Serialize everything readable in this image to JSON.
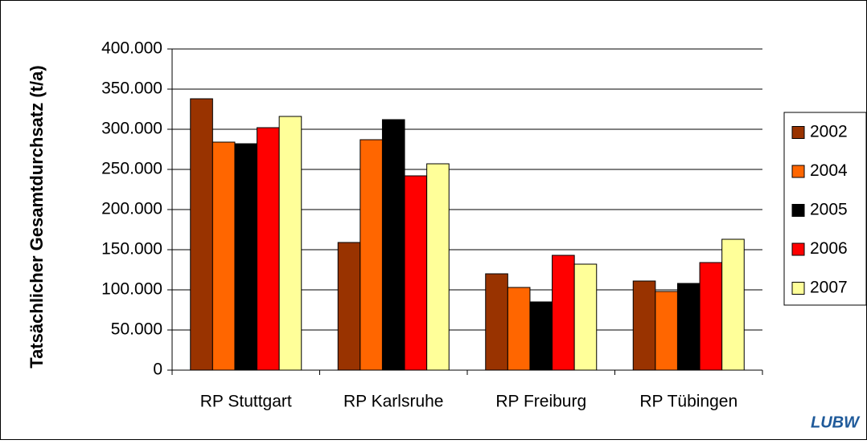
{
  "chart_data": {
    "type": "bar",
    "y_label": "Tatsächlicher Gesamtdurchsatz (t/a)",
    "categories": [
      "RP Stuttgart",
      "RP Karlsruhe",
      "RP Freiburg",
      "RP Tübingen"
    ],
    "series": [
      {
        "name": "2002",
        "color": "#993300",
        "values": [
          338000,
          159000,
          120000,
          111000
        ]
      },
      {
        "name": "2004",
        "color": "#ff6600",
        "values": [
          284000,
          287000,
          103000,
          98000
        ]
      },
      {
        "name": "2005",
        "color": "#000000",
        "values": [
          282000,
          312000,
          85000,
          108000
        ]
      },
      {
        "name": "2006",
        "color": "#ff0000",
        "values": [
          302000,
          242000,
          143000,
          134000
        ]
      },
      {
        "name": "2007",
        "color": "#ffff99",
        "values": [
          316000,
          257000,
          132000,
          163000
        ]
      }
    ],
    "ylim": [
      0,
      400000
    ],
    "yticks": [
      0,
      {
        "value": 50000,
        "label": "50.000"
      },
      {
        "value": 100000,
        "label": "100.000"
      },
      {
        "value": 150000,
        "label": "150.000"
      },
      {
        "value": 200000,
        "label": "200.000"
      },
      {
        "value": 250000,
        "label": "250.000"
      },
      {
        "value": 300000,
        "label": "300.000"
      },
      {
        "value": 350000,
        "label": "350.000"
      },
      {
        "value": 400000,
        "label": "400.000"
      }
    ],
    "grid": true,
    "legend": "right",
    "logo": "LUBW"
  }
}
